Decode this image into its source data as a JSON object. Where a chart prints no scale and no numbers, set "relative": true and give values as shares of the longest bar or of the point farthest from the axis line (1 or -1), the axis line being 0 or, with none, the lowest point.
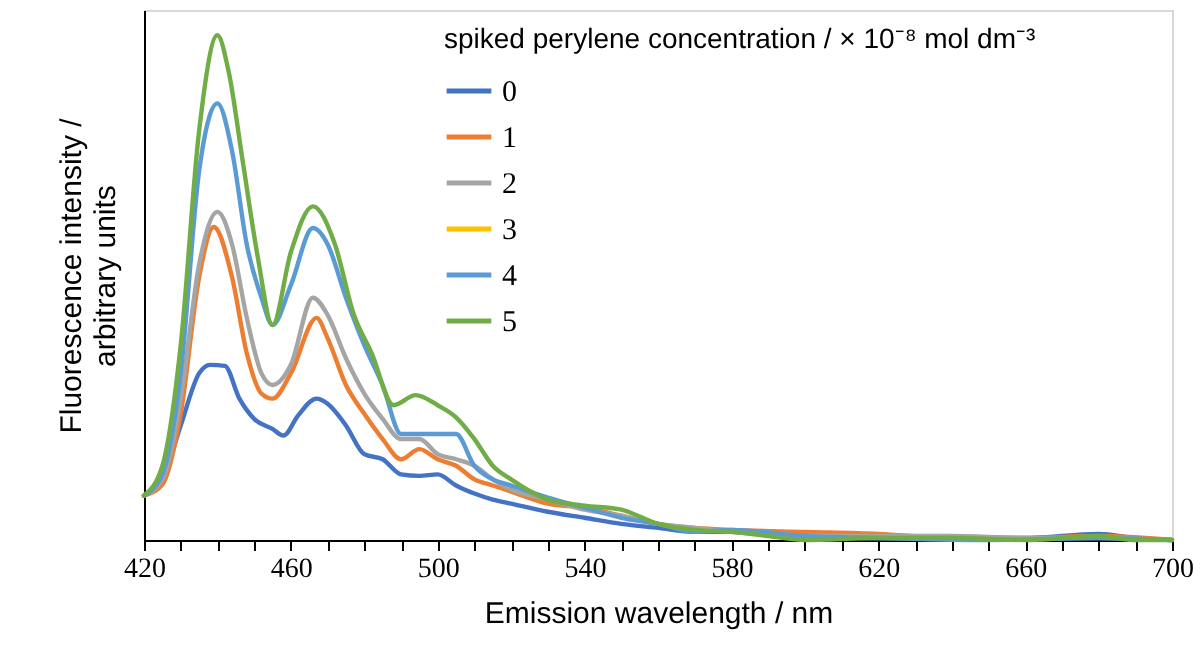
{
  "chart_data": {
    "type": "line",
    "relative": true,
    "xlabel": "Emission wavelength / nm",
    "ylabel": "Fluorescence intensity / arbitrary units",
    "legend_title": "spiked perylene concentration / × 10⁻⁸ mol dm⁻³",
    "legend": "top",
    "grid": false,
    "line_style": "solid",
    "xlim": [
      420,
      700
    ],
    "xticks": [
      420,
      {
        "value": 430,
        "label": null
      },
      {
        "value": 440,
        "label": null
      },
      {
        "value": 450,
        "label": null
      },
      460,
      {
        "value": 470,
        "label": null
      },
      {
        "value": 480,
        "label": null
      },
      {
        "value": 490,
        "label": null
      },
      500,
      {
        "value": 510,
        "label": null
      },
      {
        "value": 520,
        "label": null
      },
      {
        "value": 530,
        "label": null
      },
      540,
      {
        "value": 550,
        "label": null
      },
      {
        "value": 560,
        "label": null
      },
      {
        "value": 570,
        "label": null
      },
      580,
      {
        "value": 590,
        "label": null
      },
      {
        "value": 600,
        "label": null
      },
      {
        "value": 610,
        "label": null
      },
      620,
      {
        "value": 630,
        "label": null
      },
      {
        "value": 640,
        "label": null
      },
      {
        "value": 650,
        "label": null
      },
      660,
      {
        "value": 670,
        "label": null
      },
      {
        "value": 680,
        "label": null
      },
      {
        "value": 690,
        "label": null
      },
      700
    ],
    "series": [
      {
        "name": "0",
        "color": "#4472c4",
        "x": [
          420,
          425,
          430,
          435,
          438,
          442,
          446,
          450,
          455,
          458,
          462,
          467,
          470,
          475,
          480,
          485,
          490,
          495,
          500,
          505,
          510,
          515,
          520,
          530,
          540,
          550,
          560,
          570,
          580,
          600,
          620,
          640,
          660,
          680,
          690,
          700
        ],
        "values": [
          0.088,
          0.12,
          0.227,
          0.33,
          0.347,
          0.345,
          0.28,
          0.24,
          0.22,
          0.207,
          0.247,
          0.28,
          0.27,
          0.227,
          0.17,
          0.16,
          0.13,
          0.127,
          0.13,
          0.108,
          0.092,
          0.08,
          0.072,
          0.056,
          0.044,
          0.032,
          0.024,
          0.016,
          0.016,
          0.008,
          0.004,
          0.004,
          0.004,
          0.012,
          0.004,
          0
        ]
      },
      {
        "name": "1",
        "color": "#ed7d31",
        "x": [
          420,
          425,
          430,
          435,
          439,
          444,
          448,
          452,
          455,
          460,
          467,
          470,
          475,
          480,
          485,
          490,
          495,
          500,
          505,
          510,
          515,
          520,
          530,
          540,
          550,
          560,
          570,
          580,
          600,
          620,
          640,
          660,
          680,
          700
        ],
        "values": [
          0.088,
          0.11,
          0.25,
          0.52,
          0.62,
          0.52,
          0.37,
          0.29,
          0.28,
          0.33,
          0.44,
          0.4,
          0.307,
          0.25,
          0.2,
          0.16,
          0.18,
          0.16,
          0.147,
          0.12,
          0.108,
          0.096,
          0.072,
          0.064,
          0.048,
          0.032,
          0.024,
          0.02,
          0.016,
          0.012,
          0.004,
          0.004,
          0.008,
          0
        ]
      },
      {
        "name": "2",
        "color": "#a5a5a5",
        "x": [
          420,
          425,
          430,
          435,
          440,
          444,
          448,
          452,
          455,
          460,
          466,
          470,
          475,
          480,
          485,
          490,
          495,
          500,
          505,
          510,
          515,
          520,
          530,
          540,
          550,
          560,
          570,
          580,
          600,
          620,
          640,
          660,
          680,
          700
        ],
        "values": [
          0.088,
          0.12,
          0.28,
          0.545,
          0.65,
          0.585,
          0.44,
          0.33,
          0.307,
          0.347,
          0.48,
          0.446,
          0.36,
          0.29,
          0.24,
          0.2,
          0.2,
          0.17,
          0.16,
          0.147,
          0.12,
          0.1,
          0.08,
          0.06,
          0.048,
          0.032,
          0.024,
          0.016,
          0.008,
          0.008,
          0.008,
          0.004,
          0.004,
          0
        ]
      },
      {
        "name": "3",
        "color": "#ffc000",
        "values": [
          null
        ]
      },
      {
        "name": "4",
        "color": "#5b9bd5",
        "x": [
          420,
          425,
          430,
          435,
          440,
          444,
          448,
          452,
          455,
          460,
          466,
          470,
          475,
          480,
          485,
          490,
          495,
          500,
          505,
          510,
          515,
          520,
          530,
          540,
          550,
          560,
          570,
          580,
          600,
          620,
          650,
          680,
          700
        ],
        "values": [
          0.088,
          0.13,
          0.33,
          0.73,
          0.865,
          0.77,
          0.585,
          0.48,
          0.426,
          0.505,
          0.618,
          0.586,
          0.48,
          0.386,
          0.307,
          0.21,
          0.21,
          0.21,
          0.21,
          0.147,
          0.12,
          0.108,
          0.084,
          0.064,
          0.044,
          0.032,
          0.016,
          0.02,
          0.008,
          0.004,
          0,
          0.004,
          0
        ]
      },
      {
        "name": "5",
        "color": "#70ad47",
        "x": [
          420,
          425,
          430,
          435,
          440,
          443,
          447,
          451,
          455,
          460,
          466,
          472,
          477,
          482,
          488,
          494,
          500,
          505,
          510,
          515,
          520,
          530,
          540,
          550,
          560,
          570,
          580,
          590,
          600,
          620,
          640,
          660,
          680,
          690,
          700
        ],
        "values": [
          0.088,
          0.147,
          0.386,
          0.81,
          1,
          0.93,
          0.745,
          0.56,
          0.426,
          0.57,
          0.661,
          0.586,
          0.45,
          0.37,
          0.267,
          0.287,
          0.267,
          0.243,
          0.2,
          0.147,
          0.12,
          0.08,
          0.068,
          0.06,
          0.032,
          0.02,
          0.016,
          0.008,
          0,
          0.004,
          0.004,
          0,
          0.008,
          0,
          0
        ]
      }
    ]
  }
}
